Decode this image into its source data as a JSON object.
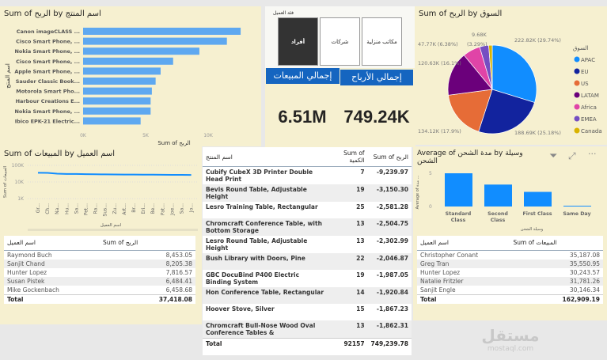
{
  "colors": {
    "bar": "#5ea8f0",
    "accent": "#118dff",
    "kpi_header": "#1565c0",
    "panel": "#f6f0d0"
  },
  "product_profit_chart": {
    "title": "Sum of الربح by اسم المنتج",
    "chart_data": {
      "type": "bar",
      "orientation": "horizontal",
      "title": "Sum of الربح by اسم المنتج",
      "xlabel": "Sum of الربح",
      "ylabel": "اسم المنتج",
      "xlim": [
        0,
        13000
      ],
      "xticks": [
        "0K",
        "5K",
        "10K"
      ],
      "categories": [
        "Canon imageCLASS ...",
        "Cisco Smart Phone, ...",
        "Nokia Smart Phone, ...",
        "Cisco Smart Phone, ...",
        "Apple Smart Phone, ...",
        "Sauder Classic Book...",
        "Motorola Smart Pho...",
        "Harbour Creations E...",
        "Nokia Smart Phone, ...",
        "Ibico EPK-21 Electric..."
      ],
      "values": [
        12600,
        11500,
        9300,
        7200,
        6200,
        5800,
        5500,
        5400,
        5400,
        4600
      ]
    }
  },
  "slicer": {
    "title": "فئة العميل",
    "options": [
      {
        "label": "أفراد",
        "selected": true
      },
      {
        "label": "شركات",
        "selected": false
      },
      {
        "label": "مكاتب منزلية",
        "selected": false
      }
    ]
  },
  "kpis": [
    {
      "label": "إجمالي المبيعات",
      "value": "6.51M"
    },
    {
      "label": "إجمالي الأرباح",
      "value": "749.24K"
    }
  ],
  "market_pie": {
    "title": "Sum of الربح by السوق",
    "chart_data": {
      "type": "pie",
      "title": "Sum of الربح by السوق",
      "legend_title": "السوق",
      "legend": "right",
      "slices": [
        {
          "name": "APAC",
          "value": 222.82,
          "label": "222.82K (29.74%)",
          "color": "#118dff"
        },
        {
          "name": "EU",
          "value": 188.69,
          "label": "188.69K (25.18%)",
          "color": "#12239e"
        },
        {
          "name": "US",
          "value": 134.12,
          "label": "134.12K (17.9%)",
          "color": "#e66c37"
        },
        {
          "name": "LATAM",
          "value": 120.63,
          "label": "120.63K (16.1%)",
          "color": "#6b007b"
        },
        {
          "name": "Africa",
          "value": 47.77,
          "label": "47.77K (6.38%)",
          "color": "#e044a7"
        },
        {
          "name": "EMEA",
          "value": 24.65,
          "label": "(3.29%)",
          "color": "#744ec2"
        },
        {
          "name": "Canada",
          "value": 9.68,
          "label": "9.68K",
          "color": "#d9b300"
        }
      ]
    }
  },
  "customer_sales_line": {
    "title": "Sum of المبيعات by اسم العميل",
    "chart_data": {
      "type": "line",
      "title": "Sum of المبيعات by اسم العميل",
      "xlabel": "اسم العميل",
      "ylabel": "Sum of المبيعات",
      "yscale": "log",
      "ylim": [
        1000,
        100000
      ],
      "yticks": [
        "1K",
        "10K",
        "100K"
      ],
      "categories": [
        "Gr...",
        "Ch...",
        "Na...",
        "Hu...",
        "Sa...",
        "Pet...",
        "Ra...",
        "Sus...",
        "Zu...",
        "Art...",
        "Br...",
        "Eri...",
        "Be...",
        "Pat...",
        "Joe...",
        "Sa...",
        "Jo..."
      ],
      "values": [
        35551,
        35187,
        31781,
        30244,
        30146,
        29500,
        29000,
        28700,
        28400,
        28100,
        27800,
        27600,
        27400,
        27200,
        27000,
        26900,
        26400
      ]
    }
  },
  "customer_profit_table": {
    "headers": [
      "اسم العميل",
      "Sum of الربح"
    ],
    "rows": [
      [
        "Raymond Buch",
        "8,453.05"
      ],
      [
        "Sanjit Chand",
        "8,205.38"
      ],
      [
        "Hunter Lopez",
        "7,816.57"
      ],
      [
        "Susan Pistek",
        "6,484.41"
      ],
      [
        "Mike Gockenbach",
        "6,458.68"
      ]
    ],
    "total": [
      "Total",
      "37,418.08"
    ]
  },
  "product_table": {
    "headers": [
      "اسم المنتج",
      "Sum of الكمية",
      "Sum of الربح"
    ],
    "rows": [
      [
        "Cubify CubeX 3D Printer Double Head Print",
        "7",
        "-9,239.97"
      ],
      [
        "Bevis Round Table, Adjustable Height",
        "19",
        "-3,150.30"
      ],
      [
        "Lesro Training Table, Rectangular",
        "25",
        "-2,581.28"
      ],
      [
        "Chromcraft Conference Table, with Bottom Storage",
        "13",
        "-2,504.75"
      ],
      [
        "Lesro Round Table, Adjustable Height",
        "13",
        "-2,302.99"
      ],
      [
        "Bush Library with Doors, Pine",
        "22",
        "-2,046.87"
      ],
      [
        "GBC DocuBind P400 Electric Binding System",
        "19",
        "-1,987.05"
      ],
      [
        "Hon Conference Table, Rectangular",
        "14",
        "-1,920.84"
      ],
      [
        "Hoover Stove, Silver",
        "15",
        "-1,867.23"
      ],
      [
        "Chromcraft Bull-Nose Wood Oval Conference Tables &",
        "13",
        "-1,862.31"
      ]
    ],
    "total": [
      "Total",
      "92157",
      "749,239.78"
    ]
  },
  "shipping_chart": {
    "title": "Average of مدة الشحن by وسيلة الشحن",
    "chart_data": {
      "type": "bar",
      "title": "Average of مدة الشحن by وسيلة الشحن",
      "xlabel": "وسيلة الشحن",
      "ylabel": "Average of مدة ...",
      "ylim": [
        0,
        6
      ],
      "yticks": [
        "0",
        "5"
      ],
      "categories": [
        "Standard Class",
        "Second Class",
        "First Class",
        "Same Day"
      ],
      "values": [
        5.0,
        3.3,
        2.2,
        0.04
      ]
    }
  },
  "customer_sales_table": {
    "headers": [
      "اسم العميل",
      "Sum of المبيعات"
    ],
    "rows": [
      [
        "Christopher Conant",
        "35,187.08"
      ],
      [
        "Greg Tran",
        "35,550.95"
      ],
      [
        "Hunter Lopez",
        "30,243.57"
      ],
      [
        "Natalie Fritzler",
        "31,781.26"
      ],
      [
        "Sanjit Engle",
        "30,146.34"
      ]
    ],
    "total": [
      "Total",
      "162,909.19"
    ]
  },
  "watermark": {
    "text": "مستقل",
    "sub": "mostaql.com"
  }
}
